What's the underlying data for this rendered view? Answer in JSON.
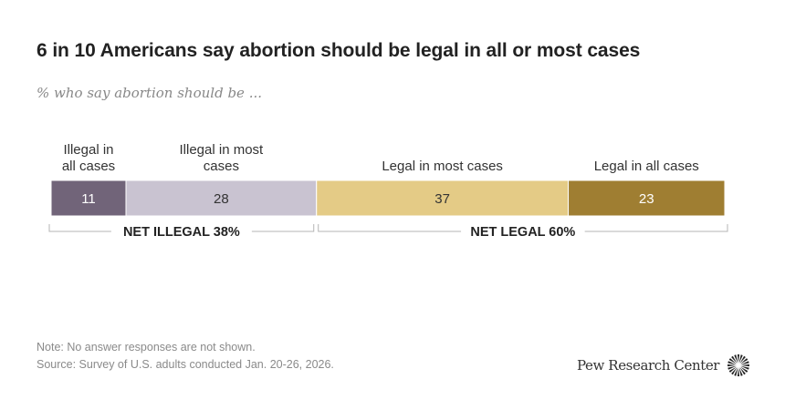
{
  "chart_data": {
    "type": "bar",
    "subtype": "stacked-horizontal",
    "title": "6 in 10 Americans say abortion should be legal in all or most cases",
    "subtitle": "% who say abortion should be ...",
    "categories": [
      "Illegal in all cases",
      "Illegal in most cases",
      "Legal in most cases",
      "Legal in all cases"
    ],
    "category_label_lines": [
      [
        "Illegal in",
        "all cases"
      ],
      [
        "Illegal in most",
        "cases"
      ],
      [
        "Legal in most cases"
      ],
      [
        "Legal in all cases"
      ]
    ],
    "values": [
      11,
      28,
      37,
      23
    ],
    "data_labels": [
      "11",
      "28",
      "37",
      "23"
    ],
    "colors": [
      "#716479",
      "#c9c3d1",
      "#e4cb86",
      "#9f7e32"
    ],
    "label_colors": [
      "#ffffff",
      "#333333",
      "#333333",
      "#ffffff"
    ],
    "xlim": [
      0,
      99
    ],
    "grid": false,
    "legend": "none",
    "nets": [
      {
        "label": "NET ILLEGAL 38%",
        "from": 0,
        "to": 2
      },
      {
        "label": "NET LEGAL 60%",
        "from": 2,
        "to": 4
      }
    ]
  },
  "notes": {
    "note": "Note: No answer responses are not shown.",
    "source": "Source: Survey of U.S. adults conducted Jan. 20-26, 2026."
  },
  "branding": {
    "logo_text": "Pew Research Center",
    "logo_icon": "sunburst-logo-icon"
  }
}
